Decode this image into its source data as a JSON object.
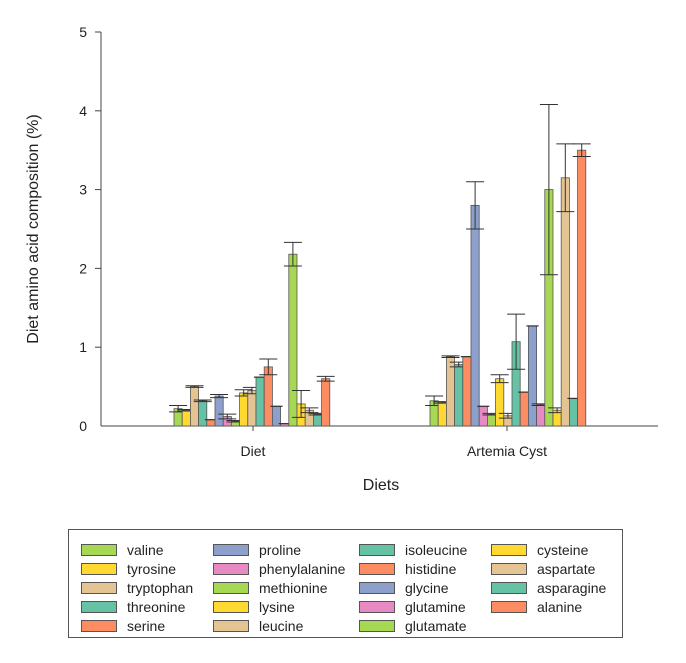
{
  "chart_data": {
    "type": "bar",
    "title": "",
    "xlabel": "Diets",
    "ylabel": "Diet amino acid composition (%)",
    "ylim": [
      0,
      5
    ],
    "yticks": [
      0,
      1,
      2,
      3,
      4,
      5
    ],
    "grid": false,
    "legend_position": "bottom",
    "categories": [
      "Diet",
      "Artemia Cyst"
    ],
    "series": [
      {
        "name": "valine",
        "color": "#a6d854",
        "values": [
          0.22,
          0.32
        ],
        "err": [
          0.04,
          0.06
        ]
      },
      {
        "name": "tyrosine",
        "color": "#ffd92f",
        "values": [
          0.2,
          0.3
        ],
        "err": [
          0.01,
          0.01
        ]
      },
      {
        "name": "tryptophan",
        "color": "#e5c494",
        "values": [
          0.5,
          0.88
        ],
        "err": [
          0.01,
          0.01
        ]
      },
      {
        "name": "threonine",
        "color": "#66c2a5",
        "values": [
          0.32,
          0.78
        ],
        "err": [
          0.01,
          0.03
        ]
      },
      {
        "name": "serine",
        "color": "#fc8d62",
        "values": [
          0.08,
          0.88
        ],
        "err": [
          0.0,
          0.0
        ]
      },
      {
        "name": "proline",
        "color": "#8da0cb",
        "values": [
          0.38,
          2.8
        ],
        "err": [
          0.02,
          0.3
        ]
      },
      {
        "name": "phenylalanine",
        "color": "#e78ac3",
        "values": [
          0.12,
          0.25
        ],
        "err": [
          0.03,
          0.0
        ]
      },
      {
        "name": "methionine",
        "color": "#a6d854",
        "values": [
          0.06,
          0.15
        ],
        "err": [
          0.01,
          0.01
        ]
      },
      {
        "name": "lysine",
        "color": "#ffd92f",
        "values": [
          0.42,
          0.6
        ],
        "err": [
          0.04,
          0.05
        ]
      },
      {
        "name": "leucine",
        "color": "#e5c494",
        "values": [
          0.45,
          0.13
        ],
        "err": [
          0.04,
          0.03
        ]
      },
      {
        "name": "isoleucine",
        "color": "#66c2a5",
        "values": [
          0.62,
          1.07
        ],
        "err": [
          0.0,
          0.35
        ]
      },
      {
        "name": "histidine",
        "color": "#fc8d62",
        "values": [
          0.75,
          0.43
        ],
        "err": [
          0.1,
          0.0
        ]
      },
      {
        "name": "glycine",
        "color": "#8da0cb",
        "values": [
          0.25,
          1.27
        ],
        "err": [
          0.0,
          0.0
        ]
      },
      {
        "name": "glutamine",
        "color": "#e78ac3",
        "values": [
          0.03,
          0.27
        ],
        "err": [
          0.0,
          0.01
        ]
      },
      {
        "name": "glutamate",
        "color": "#a6d854",
        "values": [
          2.18,
          3.0
        ],
        "err": [
          0.15,
          1.08
        ]
      },
      {
        "name": "cysteine",
        "color": "#ffd92f",
        "values": [
          0.28,
          0.2
        ],
        "err": [
          0.17,
          0.03
        ]
      },
      {
        "name": "aspartate",
        "color": "#e5c494",
        "values": [
          0.2,
          3.15
        ],
        "err": [
          0.03,
          0.43
        ]
      },
      {
        "name": "asparagine",
        "color": "#66c2a5",
        "values": [
          0.15,
          0.35
        ],
        "err": [
          0.01,
          0.0
        ]
      },
      {
        "name": "alanine",
        "color": "#fc8d62",
        "values": [
          0.6,
          3.5
        ],
        "err": [
          0.03,
          0.08
        ]
      }
    ]
  }
}
